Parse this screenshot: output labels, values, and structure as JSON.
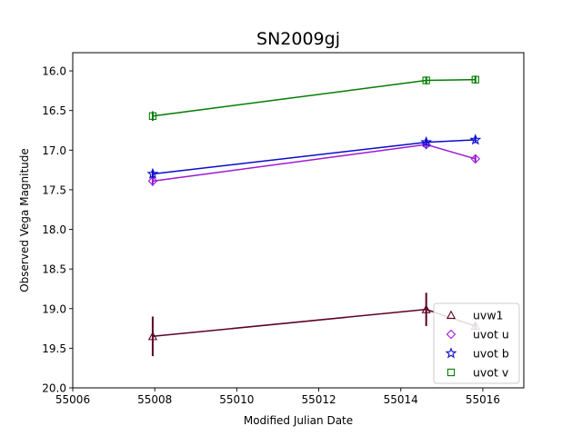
{
  "chart_data": {
    "type": "line",
    "title": "SN2009gj",
    "xlabel": "Modified Julian Date",
    "ylabel": "Observed Vega Magnitude",
    "xlim": [
      55006,
      55017
    ],
    "ylim": [
      20.0,
      15.77
    ],
    "y_inverted": true,
    "xticks": [
      55006,
      55008,
      55010,
      55012,
      55014,
      55016
    ],
    "yticks": [
      16.0,
      16.5,
      17.0,
      17.5,
      18.0,
      18.5,
      19.0,
      19.5,
      20.0
    ],
    "xtick_labels": [
      "55006",
      "55008",
      "55010",
      "55012",
      "55014",
      "55016"
    ],
    "ytick_labels": [
      "16.0",
      "16.5",
      "17.0",
      "17.5",
      "18.0",
      "18.5",
      "19.0",
      "19.5",
      "20.0"
    ],
    "grid": false,
    "legend_position": "lower right",
    "series": [
      {
        "name": "uvw1",
        "color": "#5c0026",
        "marker": "triangle",
        "x": [
          55007.95,
          55014.62,
          55015.82
        ],
        "y": [
          19.35,
          19.01,
          19.22
        ],
        "yerr": [
          0.25,
          0.21,
          0.05
        ]
      },
      {
        "name": "uvot u",
        "color": "#9b19d6",
        "marker": "diamond",
        "x": [
          55007.95,
          55014.62,
          55015.82
        ],
        "y": [
          17.39,
          16.93,
          17.11
        ],
        "yerr": [
          0.06,
          0.05,
          0.05
        ]
      },
      {
        "name": "uvot b",
        "color": "#0b0bcc",
        "marker": "star",
        "x": [
          55007.95,
          55014.62,
          55015.82
        ],
        "y": [
          17.3,
          16.9,
          16.87
        ],
        "yerr": [
          0.05,
          0.04,
          0.04
        ]
      },
      {
        "name": "uvot v",
        "color": "#037d03",
        "marker": "square",
        "x": [
          55007.95,
          55014.62,
          55015.82
        ],
        "y": [
          16.57,
          16.12,
          16.11
        ],
        "yerr": [
          0.06,
          0.05,
          0.05
        ]
      }
    ]
  }
}
